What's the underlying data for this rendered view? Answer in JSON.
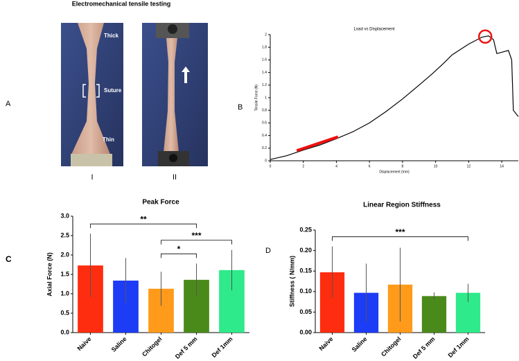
{
  "figure": {
    "title": "Electromechanical tensile testing",
    "panel_labels": [
      "A",
      "B",
      "C",
      "D"
    ],
    "photo_labels": [
      "Thick",
      "Suture",
      "Thin"
    ],
    "photo_numbers": [
      "I",
      "II"
    ]
  },
  "chart_data": [
    {
      "type": "line",
      "title": "Load vs Displacement",
      "x_label": "Displacement (mm)",
      "y_label": "Tensile Force (N)",
      "x": [
        0,
        1,
        2,
        3,
        4,
        5,
        6,
        7,
        8,
        9,
        9.8,
        10.5,
        11,
        12,
        12.8,
        13.2,
        13.5,
        13.7,
        14,
        14.4,
        14.6,
        14.7,
        15
      ],
      "values": [
        0.02,
        0.08,
        0.17,
        0.25,
        0.35,
        0.46,
        0.6,
        0.78,
        0.98,
        1.2,
        1.38,
        1.55,
        1.68,
        1.85,
        1.96,
        1.98,
        1.92,
        1.7,
        1.72,
        1.75,
        1.6,
        0.8,
        0.7
      ],
      "color": "#000000",
      "highlight": {
        "x": [
          1.6,
          4.1
        ],
        "y": [
          0.16,
          0.38
        ],
        "color": "#ee1111"
      },
      "peak_marker": {
        "x": 13,
        "y": 1.97,
        "color": "#ee1111"
      },
      "xlim": [
        0,
        15
      ],
      "xticks": [
        0,
        2,
        4,
        6,
        8,
        10,
        12,
        14
      ],
      "ylim": [
        0,
        2
      ],
      "yticks": [
        0,
        0.2,
        0.4,
        0.6,
        0.8,
        1,
        1.2,
        1.4,
        1.6,
        1.8,
        2
      ]
    },
    {
      "type": "bar",
      "title": "Peak Force",
      "y_label": "Axial Force (N)",
      "categories": [
        "Naive",
        "Saline",
        "Chitogel",
        "Def 5 mm",
        "Def 1mm"
      ],
      "values": [
        1.73,
        1.34,
        1.13,
        1.36,
        1.61
      ],
      "errors": [
        0.82,
        0.58,
        0.44,
        0.42,
        0.52
      ],
      "colors": [
        "#ff2d0f",
        "#1c3cf5",
        "#ff9a1a",
        "#4a8a1a",
        "#2eea8a"
      ],
      "ylim": [
        0,
        3
      ],
      "yticks": [
        {
          "value": 0,
          "label": "0.0"
        },
        0.5,
        {
          "value": 1,
          "label": "1.0"
        },
        1.5,
        {
          "value": 2,
          "label": "2.0"
        },
        2.5,
        {
          "value": 3,
          "label": "3.0"
        }
      ],
      "significance": [
        {
          "between": [
            "Naive",
            "Def 5 mm"
          ],
          "label": "**"
        },
        {
          "between": [
            "Chitogel",
            "Def 1mm"
          ],
          "label": "***"
        },
        {
          "between": [
            "Chitogel",
            "Def 5 mm"
          ],
          "label": "*"
        }
      ]
    },
    {
      "type": "bar",
      "title": "Linear Region Stiffness",
      "y_label": "Stiffness ( N/mm)",
      "categories": [
        "Naive",
        "Saline",
        "Chitogel",
        "Def 5 mm",
        "Def 1mm"
      ],
      "values": [
        0.147,
        0.097,
        0.117,
        0.089,
        0.097
      ],
      "errors": [
        0.063,
        0.071,
        0.09,
        0.009,
        0.022
      ],
      "colors": [
        "#ff2d0f",
        "#1c3cf5",
        "#ff9a1a",
        "#4a8a1a",
        "#2eea8a"
      ],
      "ylim": [
        0,
        0.25
      ],
      "yticks": [
        {
          "value": 0,
          "label": "0.00"
        },
        {
          "value": 0.05,
          "label": "0.05"
        },
        {
          "value": 0.1,
          "label": "0.10"
        },
        {
          "value": 0.15,
          "label": "0.15"
        },
        {
          "value": 0.2,
          "label": "0.20"
        },
        {
          "value": 0.25,
          "label": "0.25"
        }
      ],
      "significance": [
        {
          "between": [
            "Naive",
            "Def 1mm"
          ],
          "label": "***"
        }
      ]
    }
  ]
}
